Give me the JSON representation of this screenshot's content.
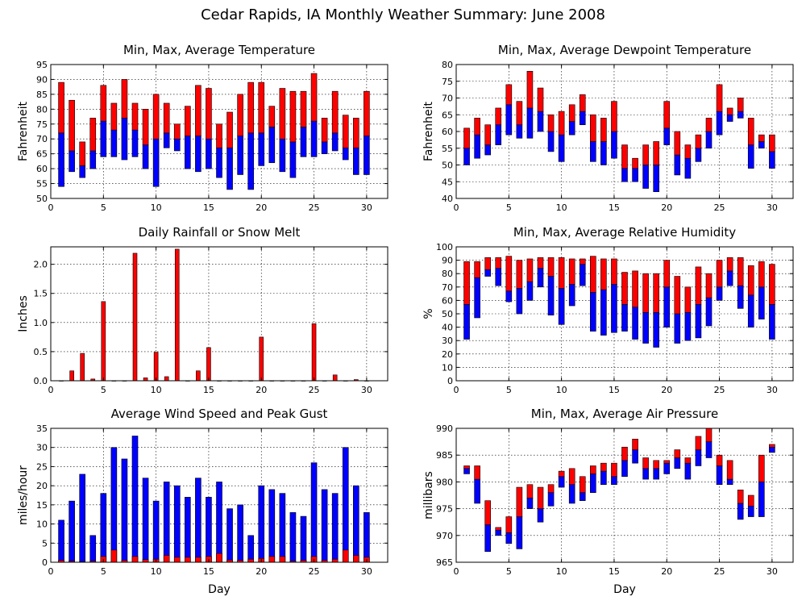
{
  "figure": {
    "title": "Cedar Rapids, IA Monthly Weather Summary: June 2008",
    "xlabel": "Day"
  },
  "colors": {
    "red": "#ff0000",
    "blue": "#0000ff",
    "edge": "#000000"
  },
  "chart_data": [
    {
      "id": "temperature",
      "type": "bar",
      "style": "floating-range",
      "title": "Min, Max, Average Temperature",
      "ylabel": "Fahrenheit",
      "xlabel": "",
      "xlim": [
        0,
        32
      ],
      "xticks": [
        0,
        5,
        10,
        15,
        20,
        25,
        30
      ],
      "ylim": [
        50,
        95
      ],
      "yticks": [
        50,
        55,
        60,
        65,
        70,
        75,
        80,
        85,
        90,
        95
      ],
      "x": [
        1,
        2,
        3,
        4,
        5,
        6,
        7,
        8,
        9,
        10,
        11,
        12,
        13,
        14,
        15,
        16,
        17,
        18,
        19,
        20,
        21,
        22,
        23,
        24,
        25,
        26,
        27,
        28,
        29,
        30
      ],
      "min": [
        54,
        59,
        57,
        60,
        64,
        64,
        63,
        64,
        60,
        54,
        67,
        66,
        60,
        59,
        60,
        57,
        53,
        58,
        53,
        61,
        62,
        59,
        57,
        64,
        64,
        65,
        66,
        63,
        58,
        58
      ],
      "avg": [
        72,
        66,
        61,
        66,
        76,
        73,
        77,
        73,
        68,
        70,
        72,
        70,
        71,
        71,
        70,
        67,
        67,
        71,
        72,
        72,
        74,
        70,
        69,
        74,
        76,
        69,
        72,
        67,
        67,
        71
      ],
      "max": [
        89,
        83,
        69,
        77,
        88,
        82,
        90,
        82,
        80,
        85,
        82,
        75,
        81,
        88,
        87,
        75,
        79,
        85,
        89,
        89,
        81,
        87,
        86,
        86,
        92,
        77,
        86,
        78,
        77,
        86
      ]
    },
    {
      "id": "dewpoint",
      "type": "bar",
      "style": "floating-range",
      "title": "Min, Max, Average Dewpoint Temperature",
      "ylabel": "Fahrenheit",
      "xlabel": "",
      "xlim": [
        0,
        32
      ],
      "xticks": [
        0,
        5,
        10,
        15,
        20,
        25,
        30
      ],
      "ylim": [
        40,
        80
      ],
      "yticks": [
        40,
        45,
        50,
        55,
        60,
        65,
        70,
        75,
        80
      ],
      "x": [
        1,
        2,
        3,
        4,
        5,
        6,
        7,
        8,
        9,
        10,
        11,
        12,
        13,
        14,
        15,
        16,
        17,
        18,
        19,
        20,
        21,
        22,
        23,
        24,
        25,
        26,
        27,
        28,
        29,
        30
      ],
      "min": [
        50,
        52,
        53,
        56,
        59,
        58,
        58,
        60,
        54,
        51,
        59,
        62,
        51,
        50,
        52,
        45,
        45,
        43,
        42,
        56,
        47,
        46,
        51,
        55,
        59,
        63,
        64,
        49,
        55,
        49
      ],
      "avg": [
        55,
        59,
        56,
        62,
        68,
        62,
        67,
        66,
        60,
        59,
        63,
        66,
        57,
        57,
        60,
        49,
        49,
        50,
        50,
        61,
        53,
        52,
        55,
        60,
        66,
        65,
        66,
        56,
        57,
        54
      ],
      "max": [
        61,
        64,
        62,
        67,
        74,
        69,
        78,
        73,
        65,
        66,
        68,
        71,
        65,
        64,
        69,
        56,
        52,
        56,
        57,
        69,
        60,
        56,
        59,
        64,
        74,
        67,
        70,
        64,
        59,
        59
      ]
    },
    {
      "id": "rainfall",
      "type": "bar",
      "title": "Daily Rainfall or Snow Melt",
      "ylabel": "Inches",
      "xlabel": "",
      "xlim": [
        0,
        32
      ],
      "xticks": [
        0,
        5,
        10,
        15,
        20,
        25,
        30
      ],
      "ylim": [
        0,
        2.3
      ],
      "yticks": [
        0,
        0.5,
        1,
        1.5,
        2
      ],
      "yticklabels": [
        "0.0",
        "0.5",
        "1.0",
        "1.5",
        "2.0"
      ],
      "x": [
        1,
        2,
        3,
        4,
        5,
        6,
        7,
        8,
        9,
        10,
        11,
        12,
        13,
        14,
        15,
        16,
        17,
        18,
        19,
        20,
        21,
        22,
        23,
        24,
        25,
        26,
        27,
        28,
        29,
        30
      ],
      "values": [
        0,
        0.17,
        0.47,
        0.03,
        1.36,
        0,
        0,
        2.19,
        0.05,
        0.49,
        0.07,
        2.26,
        0,
        0.17,
        0.57,
        0,
        0,
        0,
        0,
        0.75,
        0,
        0,
        0,
        0,
        0.98,
        0,
        0.1,
        0,
        0.02,
        0
      ]
    },
    {
      "id": "humidity",
      "type": "bar",
      "style": "floating-range",
      "title": "Min, Max, Average Relative Humidity",
      "ylabel": "%",
      "xlabel": "",
      "xlim": [
        0,
        32
      ],
      "xticks": [
        0,
        5,
        10,
        15,
        20,
        25,
        30
      ],
      "ylim": [
        0,
        100
      ],
      "yticks": [
        0,
        10,
        20,
        30,
        40,
        50,
        60,
        70,
        80,
        90,
        100
      ],
      "x": [
        1,
        2,
        3,
        4,
        5,
        6,
        7,
        8,
        9,
        10,
        11,
        12,
        13,
        14,
        15,
        16,
        17,
        18,
        19,
        20,
        21,
        22,
        23,
        24,
        25,
        26,
        27,
        28,
        29,
        30
      ],
      "min": [
        31,
        47,
        78,
        71,
        59,
        50,
        60,
        70,
        49,
        42,
        56,
        71,
        37,
        34,
        36,
        37,
        31,
        28,
        25,
        40,
        28,
        30,
        32,
        41,
        60,
        71,
        54,
        40,
        46,
        31
      ],
      "avg": [
        57,
        77,
        83,
        84,
        67,
        69,
        74,
        84,
        78,
        69,
        72,
        87,
        66,
        68,
        72,
        57,
        55,
        51,
        51,
        70,
        50,
        51,
        57,
        62,
        70,
        82,
        71,
        64,
        70,
        57
      ],
      "max": [
        89,
        89,
        92,
        92,
        93,
        90,
        91,
        92,
        92,
        92,
        91,
        91,
        93,
        91,
        91,
        81,
        82,
        80,
        80,
        90,
        78,
        70,
        85,
        80,
        90,
        92,
        92,
        86,
        89,
        87
      ]
    },
    {
      "id": "wind",
      "type": "bar",
      "style": "overlaid",
      "title": "Average Wind Speed and Peak Gust",
      "ylabel": "miles/hour",
      "xlabel": "Day",
      "xlim": [
        0,
        32
      ],
      "xticks": [
        0,
        5,
        10,
        15,
        20,
        25,
        30
      ],
      "ylim": [
        0,
        35
      ],
      "yticks": [
        0,
        5,
        10,
        15,
        20,
        25,
        30,
        35
      ],
      "x": [
        1,
        2,
        3,
        4,
        5,
        6,
        7,
        8,
        9,
        10,
        11,
        12,
        13,
        14,
        15,
        16,
        17,
        18,
        19,
        20,
        21,
        22,
        23,
        24,
        25,
        26,
        27,
        28,
        29,
        30
      ],
      "series": [
        {
          "name": "peak gust",
          "color": "#0000ff",
          "values": [
            11,
            16,
            23,
            7,
            18,
            30,
            27,
            33,
            22,
            16,
            21,
            20,
            17,
            22,
            17,
            21,
            14,
            15,
            7,
            20,
            19,
            18,
            13,
            12,
            26,
            19,
            18,
            30,
            20,
            13
          ]
        },
        {
          "name": "average wind speed",
          "color": "#ff0000",
          "values": [
            0.5,
            0.3,
            0.2,
            0.3,
            1.5,
            3.2,
            0.5,
            1.5,
            0.7,
            0.8,
            1.8,
            1.3,
            1.3,
            1.3,
            1.5,
            2.3,
            0.6,
            0.5,
            0.8,
            1,
            1.5,
            1.5,
            0.3,
            0.5,
            1.5,
            0.5,
            0.8,
            3.2,
            1.8,
            1.3
          ]
        }
      ]
    },
    {
      "id": "pressure",
      "type": "bar",
      "style": "floating-range",
      "title": "Min, Max, Average Air Pressure",
      "ylabel": "millibars",
      "xlabel": "Day",
      "xlim": [
        0,
        32
      ],
      "xticks": [
        0,
        5,
        10,
        15,
        20,
        25,
        30
      ],
      "ylim": [
        965,
        990
      ],
      "yticks": [
        965,
        970,
        975,
        980,
        985,
        990
      ],
      "x": [
        1,
        2,
        3,
        4,
        5,
        6,
        7,
        8,
        9,
        10,
        11,
        12,
        13,
        14,
        15,
        16,
        17,
        18,
        19,
        20,
        21,
        22,
        23,
        24,
        25,
        26,
        27,
        28,
        29,
        30
      ],
      "min": [
        981.5,
        976,
        967,
        970,
        968.5,
        967.5,
        975,
        972.5,
        975.5,
        979,
        976,
        976.5,
        978,
        979.5,
        979.5,
        981,
        983.5,
        980.5,
        980.5,
        981.5,
        982.5,
        980.5,
        983,
        984.5,
        979.5,
        979.5,
        973,
        973.5,
        973.5,
        985.5
      ],
      "avg": [
        982.5,
        980.5,
        972,
        971,
        970.5,
        973.5,
        977,
        975,
        978,
        981,
        979.5,
        978,
        981.5,
        982,
        981,
        984,
        986,
        982.5,
        982.5,
        983.5,
        984.5,
        983.5,
        986,
        987.5,
        983,
        980.5,
        976,
        975.5,
        980,
        986.5
      ],
      "max": [
        983,
        983,
        976.5,
        971.5,
        973.5,
        979,
        979.5,
        979,
        979.5,
        982,
        982.5,
        981,
        983,
        983.5,
        983.5,
        986.5,
        988,
        984.5,
        984,
        984,
        986,
        984.5,
        988.5,
        990,
        985,
        984,
        978.5,
        977.5,
        985,
        987
      ]
    }
  ]
}
